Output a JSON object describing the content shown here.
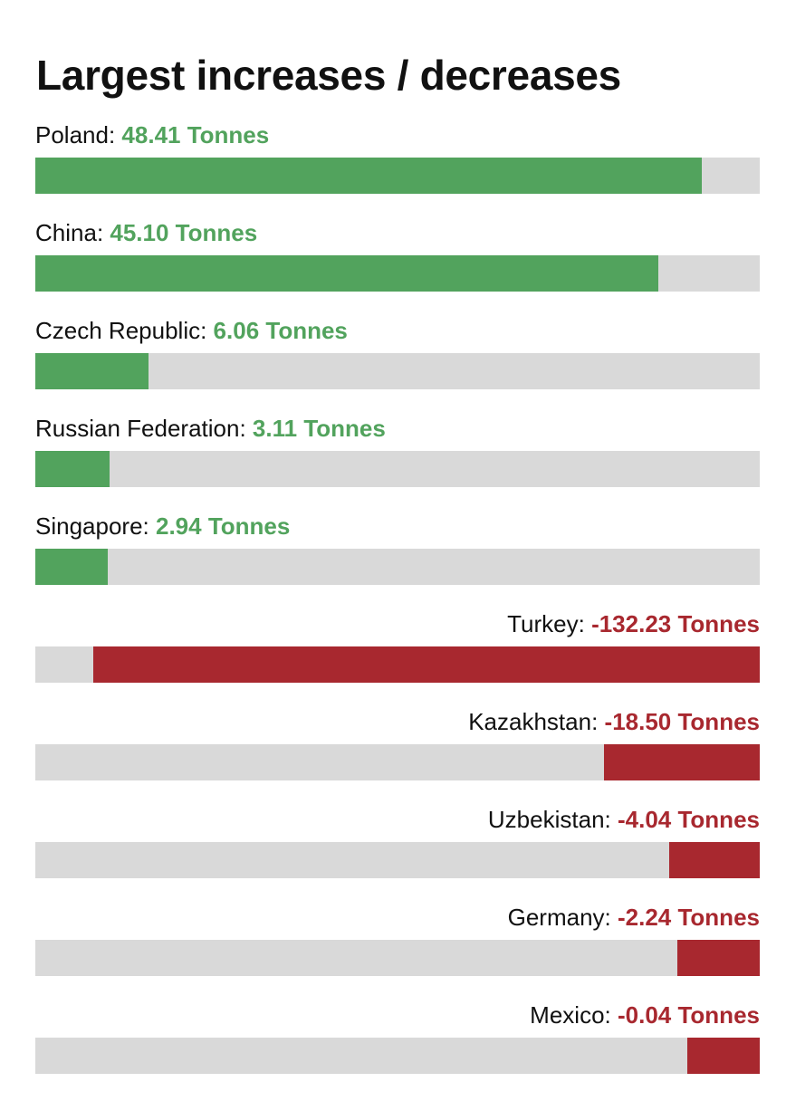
{
  "title": "Largest increases / decreases",
  "colors": {
    "increase": "#52a35d",
    "decrease": "#a8282f",
    "track": "#d9d9d9"
  },
  "chart_data": {
    "type": "bar",
    "title": "Largest increases / decreases",
    "unit": "Tonnes",
    "increases": [
      {
        "country": "Poland",
        "value": 48.41,
        "display": "48.41 Tonnes"
      },
      {
        "country": "China",
        "value": 45.1,
        "display": "45.10 Tonnes"
      },
      {
        "country": "Czech Republic",
        "value": 6.06,
        "display": "6.06 Tonnes"
      },
      {
        "country": "Russian Federation",
        "value": 3.11,
        "display": "3.11 Tonnes"
      },
      {
        "country": "Singapore",
        "value": 2.94,
        "display": "2.94 Tonnes"
      }
    ],
    "decreases": [
      {
        "country": "Turkey",
        "value": -132.23,
        "display": "-132.23 Tonnes"
      },
      {
        "country": "Kazakhstan",
        "value": -18.5,
        "display": "-18.50 Tonnes"
      },
      {
        "country": "Uzbekistan",
        "value": -4.04,
        "display": "-4.04 Tonnes"
      },
      {
        "country": "Germany",
        "value": -2.24,
        "display": "-2.24 Tonnes"
      },
      {
        "country": "Mexico",
        "value": -0.04,
        "display": "-0.04 Tonnes"
      }
    ],
    "bar_fraction": {
      "Poland": 0.92,
      "China": 0.86,
      "Czech Republic": 0.156,
      "Russian Federation": 0.102,
      "Singapore": 0.1,
      "Turkey": 0.92,
      "Kazakhstan": 0.215,
      "Uzbekistan": 0.125,
      "Germany": 0.114,
      "Mexico": 0.1
    }
  }
}
